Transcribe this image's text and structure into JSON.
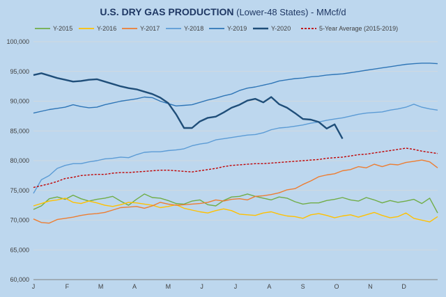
{
  "chart_data": {
    "type": "line",
    "title_bold": "U.S. DRY GAS PRODUCTION",
    "title_rest": " (Lower-48 States) - MMcf/d",
    "xlabel": "",
    "ylabel": "",
    "ylim": [
      60000,
      100000
    ],
    "y_ticks": [
      "60,000",
      "65,000",
      "70,000",
      "75,000",
      "80,000",
      "85,000",
      "90,000",
      "95,000",
      "100,000"
    ],
    "x_ticks": [
      "J",
      "F",
      "M",
      "A",
      "M",
      "J",
      "J",
      "A",
      "S",
      "O",
      "N",
      "D"
    ],
    "grid": true,
    "legend_position": "top",
    "series": [
      {
        "name": "Y-2015",
        "color": "#70ad47",
        "dash": false,
        "values": [
          71800,
          72400,
          73600,
          73900,
          73500,
          74200,
          73600,
          73200,
          73500,
          73700,
          74000,
          73200,
          72500,
          73500,
          74400,
          73800,
          73700,
          73300,
          72800,
          72700,
          73200,
          73400,
          72600,
          72400,
          73300,
          73900,
          74000,
          74400,
          74000,
          73700,
          73400,
          73900,
          73700,
          73100,
          72700,
          72900,
          72900,
          73300,
          73500,
          73800,
          73400,
          73200,
          73800,
          73400,
          72900,
          73300,
          73000,
          73200,
          73500,
          72800,
          73700,
          71200
        ]
      },
      {
        "name": "Y-2016",
        "color": "#ffc000",
        "dash": false,
        "values": [
          72400,
          72800,
          73200,
          73400,
          73700,
          73000,
          72800,
          73200,
          72900,
          72500,
          72300,
          72600,
          73000,
          72900,
          72700,
          72500,
          72100,
          72300,
          72600,
          72000,
          71700,
          71400,
          71200,
          71600,
          71900,
          71600,
          71000,
          70900,
          70800,
          71200,
          71400,
          71000,
          70700,
          70600,
          70300,
          70900,
          71100,
          70800,
          70400,
          70700,
          70900,
          70500,
          70900,
          71300,
          70800,
          70400,
          70600,
          71200,
          70300,
          70000,
          69700,
          70600
        ]
      },
      {
        "name": "Y-2017",
        "color": "#ed7d31",
        "dash": false,
        "values": [
          70200,
          69600,
          69500,
          70100,
          70300,
          70500,
          70800,
          71000,
          71100,
          71300,
          71700,
          72100,
          72200,
          72300,
          72000,
          72400,
          73000,
          72700,
          72500,
          72600,
          72700,
          72800,
          73000,
          73400,
          73200,
          73500,
          73600,
          73400,
          74000,
          74100,
          74300,
          74600,
          75100,
          75300,
          76000,
          76600,
          77300,
          77600,
          77800,
          78300,
          78500,
          79000,
          78800,
          79400,
          79000,
          79400,
          79300,
          79700,
          79900,
          80100,
          79800,
          78800
        ]
      },
      {
        "name": "Y-2018",
        "color": "#5b9bd5",
        "dash": false,
        "values": [
          74500,
          76800,
          77500,
          78700,
          79200,
          79500,
          79500,
          79800,
          80000,
          80300,
          80400,
          80600,
          80500,
          81000,
          81400,
          81500,
          81500,
          81700,
          81800,
          82000,
          82500,
          82800,
          83000,
          83500,
          83700,
          83900,
          84100,
          84300,
          84400,
          84700,
          85200,
          85500,
          85600,
          85800,
          86000,
          86300,
          86500,
          86800,
          87000,
          87200,
          87500,
          87800,
          88000,
          88100,
          88200,
          88500,
          88700,
          89000,
          89500,
          89000,
          88700,
          88500
        ]
      },
      {
        "name": "Y-2019",
        "color": "#2e75b6",
        "dash": false,
        "values": [
          88000,
          88300,
          88600,
          88800,
          89000,
          89400,
          89100,
          88900,
          89000,
          89400,
          89700,
          90000,
          90200,
          90400,
          90700,
          90600,
          90000,
          89600,
          89200,
          89300,
          89400,
          89800,
          90200,
          90500,
          90900,
          91200,
          91800,
          92200,
          92400,
          92700,
          93000,
          93400,
          93600,
          93800,
          93900,
          94100,
          94200,
          94400,
          94500,
          94600,
          94800,
          95000,
          95200,
          95400,
          95600,
          95800,
          96000,
          96200,
          96300,
          96400,
          96400,
          96300
        ]
      },
      {
        "name": "Y-2020",
        "color": "#1f4e79",
        "dash": false,
        "values": [
          94400,
          94700,
          94300,
          93900,
          93600,
          93300,
          93400,
          93600,
          93700,
          93300,
          92900,
          92500,
          92200,
          92000,
          91600,
          91200,
          90600,
          89700,
          87800,
          85500,
          85500,
          86600,
          87200,
          87400,
          88100,
          88900,
          89400,
          90100,
          90400,
          89800,
          90700,
          89500,
          88900,
          88000,
          87000,
          86900,
          86500,
          85400,
          86100,
          83700
        ]
      },
      {
        "name": "5-Year Average (2015-2019)",
        "color": "#c00000",
        "dash": true,
        "values": [
          75500,
          75800,
          76100,
          76500,
          77000,
          77200,
          77500,
          77600,
          77700,
          77700,
          77900,
          78000,
          78000,
          78100,
          78200,
          78300,
          78400,
          78400,
          78300,
          78200,
          78100,
          78300,
          78500,
          78700,
          79000,
          79200,
          79300,
          79400,
          79500,
          79500,
          79600,
          79700,
          79800,
          79900,
          80000,
          80100,
          80200,
          80400,
          80500,
          80600,
          80800,
          81000,
          81100,
          81300,
          81500,
          81700,
          81900,
          82100,
          81900,
          81600,
          81400,
          81200
        ]
      }
    ]
  }
}
